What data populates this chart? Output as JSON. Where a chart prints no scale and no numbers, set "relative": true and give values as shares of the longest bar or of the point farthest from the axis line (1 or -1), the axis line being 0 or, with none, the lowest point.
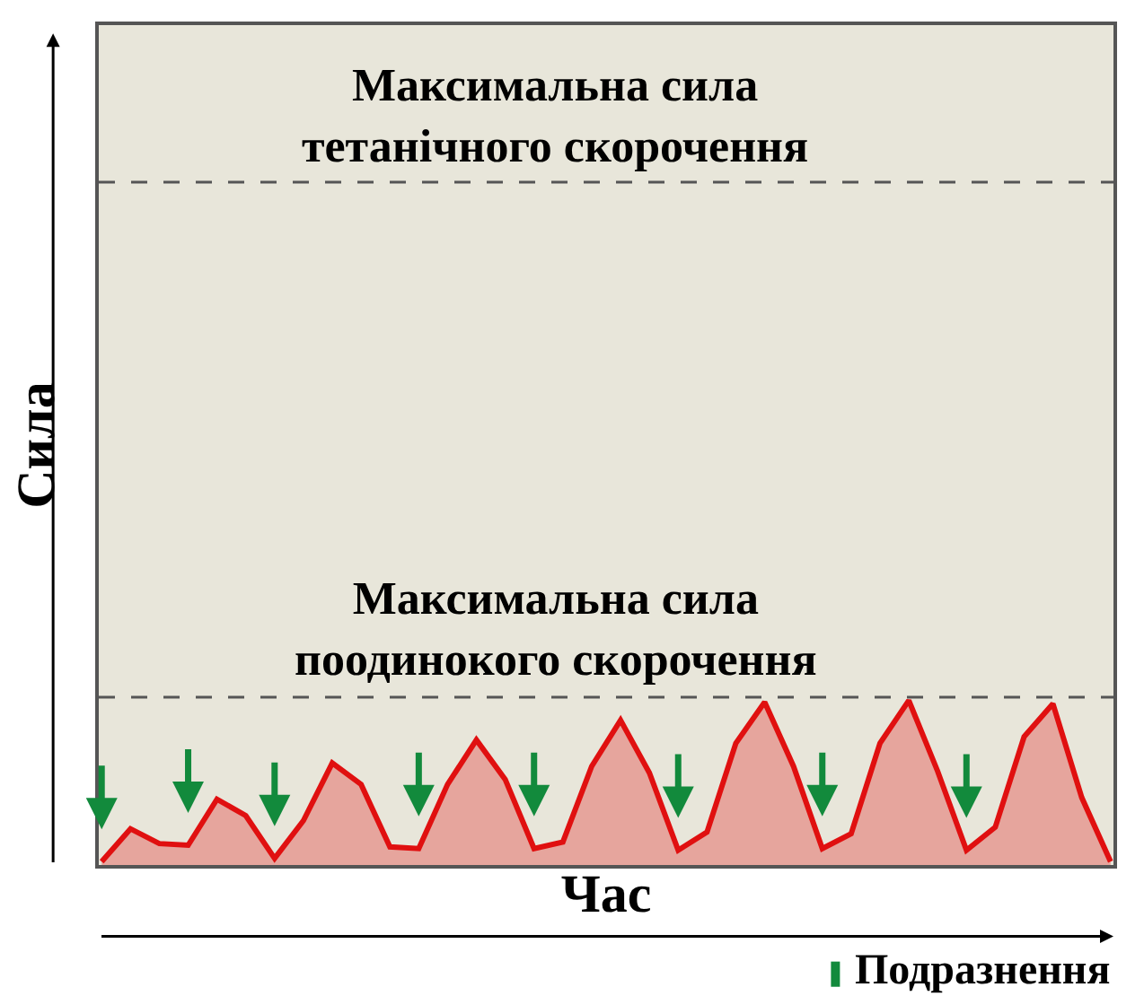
{
  "chart_data": {
    "type": "area",
    "relative": true,
    "xlabel": "Час",
    "ylabel": "Сила",
    "grid": false,
    "categories": [
      null,
      null,
      null,
      null,
      null,
      null,
      null,
      null,
      null,
      null,
      null,
      null,
      null,
      null,
      null,
      null,
      null,
      null,
      null,
      null,
      null,
      null,
      null,
      null,
      null,
      null,
      null,
      null,
      null,
      null,
      null,
      null,
      null,
      null,
      null,
      null
    ],
    "series": [
      {
        "color": "#e01010",
        "values": [
          0.02,
          0.22,
          0.13,
          0.12,
          0.4,
          0.3,
          0.04,
          0.27,
          0.62,
          0.49,
          0.11,
          0.1,
          0.49,
          0.76,
          0.52,
          0.1,
          0.14,
          0.6,
          0.88,
          0.56,
          0.09,
          0.2,
          0.74,
          0.99,
          0.6,
          0.1,
          0.19,
          0.74,
          1.0,
          0.57,
          0.09,
          0.23,
          0.78,
          0.98,
          0.41,
          0.02
        ]
      }
    ],
    "ref_lines": [
      {
        "axis": "y",
        "value": 1.02,
        "label": "Максимальна сила\nпоодинокого скорочення",
        "color": "#555555",
        "line_style": "dashed"
      },
      {
        "axis": "y",
        "value": 4.15,
        "label": "Максимальна сила\nтетанічного скорочення",
        "color": "#555555",
        "line_style": "dashed"
      }
    ],
    "annotations": [
      "Подразнення"
    ]
  }
}
